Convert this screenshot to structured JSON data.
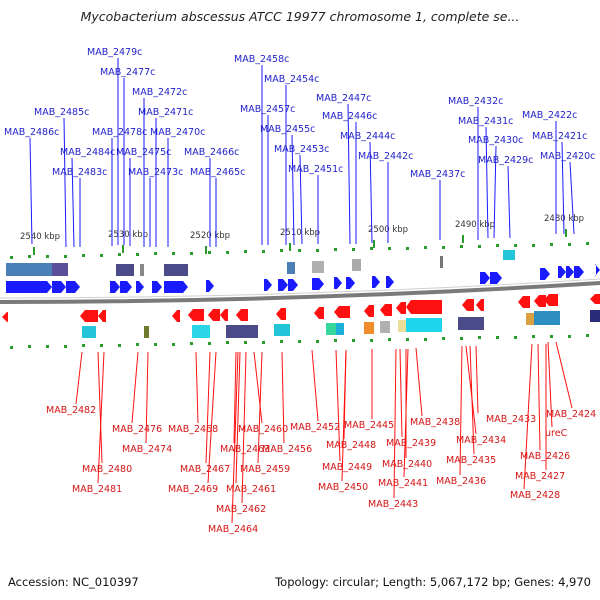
{
  "title": "Mycobacterium abscessus ATCC 19977 chromosome 1, complete se...",
  "footer": {
    "accession": "Accession: NC_010397",
    "summary": "Topology: circular; Length: 5,067,172 bp; Genes: 4,970"
  },
  "colors": {
    "forward_gene": "#1a1aff",
    "reverse_gene": "#ff1010",
    "forward_label": "#1f1fc9",
    "reverse_label": "#d41515",
    "backbone": "#7a7a7a",
    "tick": "#2a9a2a"
  },
  "scale_labels": [
    "2540 kbp",
    "2530 kbp",
    "2520 kbp",
    "2510 kbp",
    "2500 kbp",
    "2490 kbp",
    "2480 kbp"
  ],
  "forward_labels": [
    "MAB_2479c",
    "MAB_2477c",
    "MAB_2472c",
    "MAB_2471c",
    "MAB_2470c",
    "MAB_2478c",
    "MAB_2485c",
    "MAB_2486c",
    "MAB_2484c",
    "MAB_2483c",
    "MAB_2475c",
    "MAB_2473c",
    "MAB_2466c",
    "MAB_2465c",
    "MAB_2458c",
    "MAB_2454c",
    "MAB_2457c",
    "MAB_2455c",
    "MAB_2453c",
    "MAB_2451c",
    "MAB_2447c",
    "MAB_2446c",
    "MAB_2444c",
    "MAB_2442c",
    "MAB_2437c",
    "MAB_2432c",
    "MAB_2431c",
    "MAB_2430c",
    "MAB_2429c",
    "MAB_2422c",
    "MAB_2421c",
    "MAB_2420c"
  ],
  "reverse_labels": [
    "MAB_2482",
    "MAB_2480",
    "MAB_2481",
    "MAB_2476",
    "MAB_2474",
    "MAB_2468",
    "MAB_2467",
    "MAB_2469",
    "MAB_2463",
    "MAB_2461",
    "MAB_2462",
    "MAB_2464",
    "MAB_2460",
    "MAB_2459",
    "MAB_2456",
    "MAB_2452",
    "MAB_2448",
    "MAB_2449",
    "MAB_2450",
    "MAB_2445",
    "MAB_2439",
    "MAB_2440",
    "MAB_2441",
    "MAB_2443",
    "MAB_2438",
    "MAB_2434",
    "MAB_2435",
    "MAB_2436",
    "MAB_2433",
    "MAB_2426",
    "MAB_2427",
    "MAB_2428",
    "ureC",
    "MAB_2424"
  ]
}
